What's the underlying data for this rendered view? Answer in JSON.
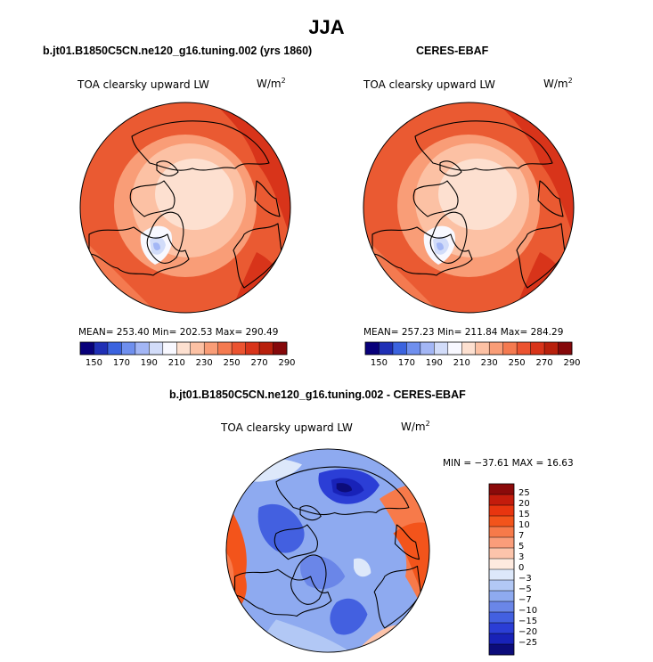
{
  "main_title": "JJA",
  "panels": [
    {
      "title": "b.jt01.B1850C5CN.ne120_g16.tuning.002 (yrs 1860)",
      "var_label": "TOA clearsky upward LW",
      "units": "W/m",
      "units_exp": "2",
      "stats": "MEAN= 253.40  Min= 202.53  Max= 290.49"
    },
    {
      "title": "CERES-EBAF",
      "var_label": "TOA clearsky upward LW",
      "units": "W/m",
      "units_exp": "2",
      "stats": "MEAN= 257.23  Min= 211.84  Max= 284.29"
    },
    {
      "title": "b.jt01.B1850C5CN.ne120_g16.tuning.002 - CERES-EBAF",
      "var_label": "TOA clearsky upward LW",
      "units": "W/m",
      "units_exp": "2",
      "stats": "MIN = −37.61 MAX =  16.63"
    }
  ],
  "chart_data": [
    {
      "type": "heatmap",
      "projection": "north-polar-stereographic",
      "title": "b.jt01.B1850C5CN.ne120_g16.tuning.002 (yrs 1860)",
      "variable": "TOA clearsky upward LW",
      "units": "W/m^2",
      "mean": 253.4,
      "min": 202.53,
      "max": 290.49,
      "colorbar": {
        "orientation": "horizontal",
        "levels": [
          150,
          170,
          190,
          210,
          230,
          250,
          270,
          290
        ],
        "tick_labels": [
          "150",
          "170",
          "190",
          "210",
          "230",
          "250",
          "270",
          "290"
        ],
        "colors": [
          "#08007a",
          "#1f2fb5",
          "#3b63df",
          "#6f8fee",
          "#a3b6f5",
          "#d2dcf9",
          "#f8f8ff",
          "#fde0d0",
          "#fcc1a4",
          "#f99d77",
          "#f47a50",
          "#eb5330",
          "#d8341a",
          "#b8200c",
          "#85080a"
        ]
      }
    },
    {
      "type": "heatmap",
      "projection": "north-polar-stereographic",
      "title": "CERES-EBAF",
      "variable": "TOA clearsky upward LW",
      "units": "W/m^2",
      "mean": 257.23,
      "min": 211.84,
      "max": 284.29,
      "colorbar": {
        "orientation": "horizontal",
        "levels": [
          150,
          170,
          190,
          210,
          230,
          250,
          270,
          290
        ],
        "tick_labels": [
          "150",
          "170",
          "190",
          "210",
          "230",
          "250",
          "270",
          "290"
        ],
        "colors": [
          "#08007a",
          "#1f2fb5",
          "#3b63df",
          "#6f8fee",
          "#a3b6f5",
          "#d2dcf9",
          "#f8f8ff",
          "#fde0d0",
          "#fcc1a4",
          "#f99d77",
          "#f47a50",
          "#eb5330",
          "#d8341a",
          "#b8200c",
          "#85080a"
        ]
      }
    },
    {
      "type": "heatmap",
      "projection": "north-polar-stereographic",
      "title": "b.jt01.B1850C5CN.ne120_g16.tuning.002 - CERES-EBAF",
      "variable": "TOA clearsky upward LW",
      "units": "W/m^2",
      "min": -37.61,
      "max": 16.63,
      "colorbar": {
        "orientation": "vertical",
        "levels": [
          -25,
          -20,
          -15,
          -10,
          -7,
          -5,
          -3,
          0,
          3,
          5,
          7,
          10,
          15,
          20,
          25
        ],
        "tick_labels": [
          "25",
          "20",
          "15",
          "10",
          "7",
          "5",
          "3",
          "0",
          "−3",
          "−5",
          "−7",
          "−10",
          "−15",
          "−20",
          "−25"
        ],
        "colors": [
          "#8b0a0a",
          "#c41c0c",
          "#e8350f",
          "#f3541b",
          "#f77a4a",
          "#fa9d7a",
          "#fcc4ab",
          "#feeadf",
          "#dde8fa",
          "#b2c8f5",
          "#8eaaf0",
          "#6a86e8",
          "#4360e0",
          "#2b3ed6",
          "#1822b8",
          "#0c0c7a"
        ]
      }
    }
  ]
}
